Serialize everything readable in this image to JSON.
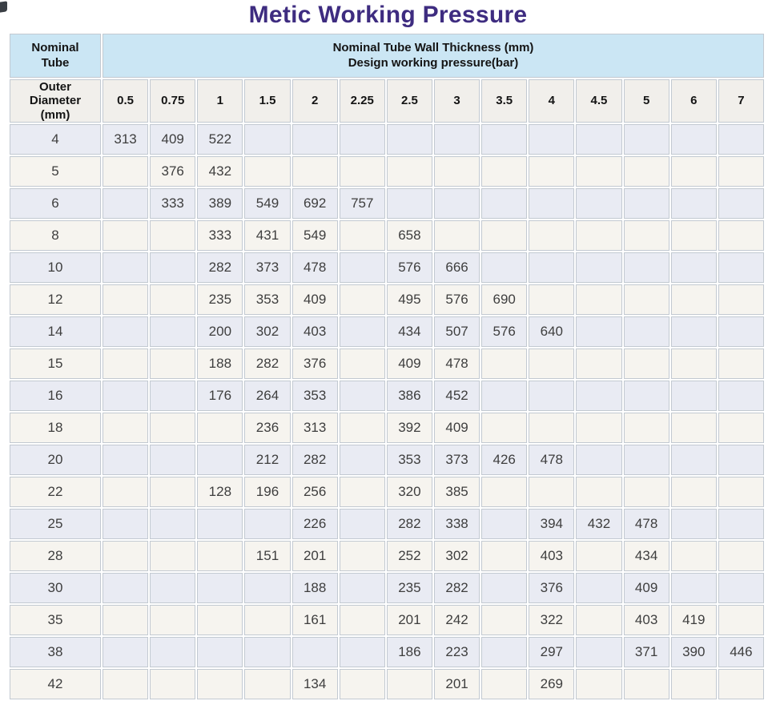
{
  "title": "Metic Working Pressure",
  "colors": {
    "title_text": "#3e2c80",
    "header_blue": "#cbe6f4",
    "header_gray": "#f1efeb",
    "row_blue": "#e9ebf3",
    "row_cream": "#f6f4ef",
    "grid_line": "#c2c9d1",
    "value_text": "#3e3e3e"
  },
  "table": {
    "corner_header": {
      "line1": "Nominal",
      "line2": "Tube"
    },
    "main_header": {
      "line1": "Nominal Tube Wall Thickness (mm)",
      "line2": "Design working pressure(bar)"
    },
    "row_header": {
      "line1": "Outer",
      "line2": "Diameter",
      "line3": "(mm)"
    },
    "columns": [
      "0.5",
      "0.75",
      "1",
      "1.5",
      "2",
      "2.25",
      "2.5",
      "3",
      "3.5",
      "4",
      "4.5",
      "5",
      "6",
      "7"
    ],
    "rows": [
      {
        "d": "4",
        "v": [
          "313",
          "409",
          "522",
          "",
          "",
          "",
          "",
          "",
          "",
          "",
          "",
          "",
          "",
          ""
        ]
      },
      {
        "d": "5",
        "v": [
          "",
          "376",
          "432",
          "",
          "",
          "",
          "",
          "",
          "",
          "",
          "",
          "",
          "",
          ""
        ]
      },
      {
        "d": "6",
        "v": [
          "",
          "333",
          "389",
          "549",
          "692",
          "757",
          "",
          "",
          "",
          "",
          "",
          "",
          "",
          ""
        ]
      },
      {
        "d": "8",
        "v": [
          "",
          "",
          "333",
          "431",
          "549",
          "",
          "658",
          "",
          "",
          "",
          "",
          "",
          "",
          ""
        ]
      },
      {
        "d": "10",
        "v": [
          "",
          "",
          "282",
          "373",
          "478",
          "",
          "576",
          "666",
          "",
          "",
          "",
          "",
          "",
          ""
        ]
      },
      {
        "d": "12",
        "v": [
          "",
          "",
          "235",
          "353",
          "409",
          "",
          "495",
          "576",
          "690",
          "",
          "",
          "",
          "",
          ""
        ]
      },
      {
        "d": "14",
        "v": [
          "",
          "",
          "200",
          "302",
          "403",
          "",
          "434",
          "507",
          "576",
          "640",
          "",
          "",
          "",
          ""
        ]
      },
      {
        "d": "15",
        "v": [
          "",
          "",
          "188",
          "282",
          "376",
          "",
          "409",
          "478",
          "",
          "",
          "",
          "",
          "",
          ""
        ]
      },
      {
        "d": "16",
        "v": [
          "",
          "",
          "176",
          "264",
          "353",
          "",
          "386",
          "452",
          "",
          "",
          "",
          "",
          "",
          ""
        ]
      },
      {
        "d": "18",
        "v": [
          "",
          "",
          "",
          "236",
          "313",
          "",
          "392",
          "409",
          "",
          "",
          "",
          "",
          "",
          ""
        ]
      },
      {
        "d": "20",
        "v": [
          "",
          "",
          "",
          "212",
          "282",
          "",
          "353",
          "373",
          "426",
          "478",
          "",
          "",
          "",
          ""
        ]
      },
      {
        "d": "22",
        "v": [
          "",
          "",
          "128",
          "196",
          "256",
          "",
          "320",
          "385",
          "",
          "",
          "",
          "",
          "",
          ""
        ]
      },
      {
        "d": "25",
        "v": [
          "",
          "",
          "",
          "",
          "226",
          "",
          "282",
          "338",
          "",
          "394",
          "432",
          "478",
          "",
          ""
        ]
      },
      {
        "d": "28",
        "v": [
          "",
          "",
          "",
          "151",
          "201",
          "",
          "252",
          "302",
          "",
          "403",
          "",
          "434",
          "",
          ""
        ]
      },
      {
        "d": "30",
        "v": [
          "",
          "",
          "",
          "",
          "188",
          "",
          "235",
          "282",
          "",
          "376",
          "",
          "409",
          "",
          ""
        ]
      },
      {
        "d": "35",
        "v": [
          "",
          "",
          "",
          "",
          "161",
          "",
          "201",
          "242",
          "",
          "322",
          "",
          "403",
          "419",
          ""
        ]
      },
      {
        "d": "38",
        "v": [
          "",
          "",
          "",
          "",
          "",
          "",
          "186",
          "223",
          "",
          "297",
          "",
          "371",
          "390",
          "446"
        ]
      },
      {
        "d": "42",
        "v": [
          "",
          "",
          "",
          "",
          "134",
          "",
          "",
          "201",
          "",
          "269",
          "",
          "",
          "",
          ""
        ]
      }
    ]
  }
}
